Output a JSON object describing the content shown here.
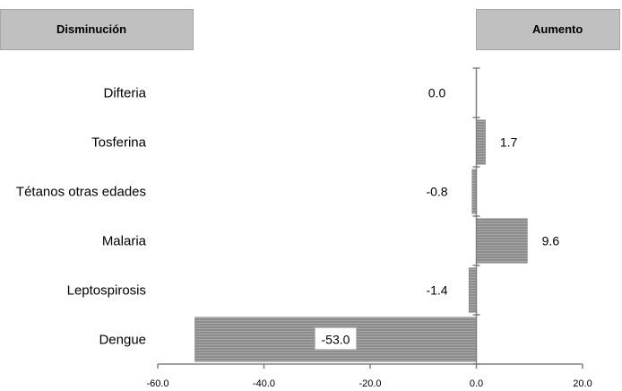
{
  "headers": {
    "left": "Disminución",
    "right": "Aumento"
  },
  "chart_data": {
    "type": "bar",
    "orientation": "horizontal",
    "categories": [
      "Difteria",
      "Tosferina",
      "Tétanos otras edades",
      "Malaria",
      "Leptospirosis",
      "Dengue"
    ],
    "values": [
      0.0,
      1.7,
      -0.8,
      9.6,
      -1.4,
      -53.0
    ],
    "value_labels": [
      "0.0",
      "1.7",
      "-0.8",
      "9.6",
      "-1.4",
      "-53.0"
    ],
    "xlim": [
      -60,
      20
    ],
    "xticks": [
      "-60.0",
      "-40.0",
      "-20.0",
      "0.0",
      "20.0"
    ],
    "bar_color": "#8c8c8c",
    "grid": false
  }
}
